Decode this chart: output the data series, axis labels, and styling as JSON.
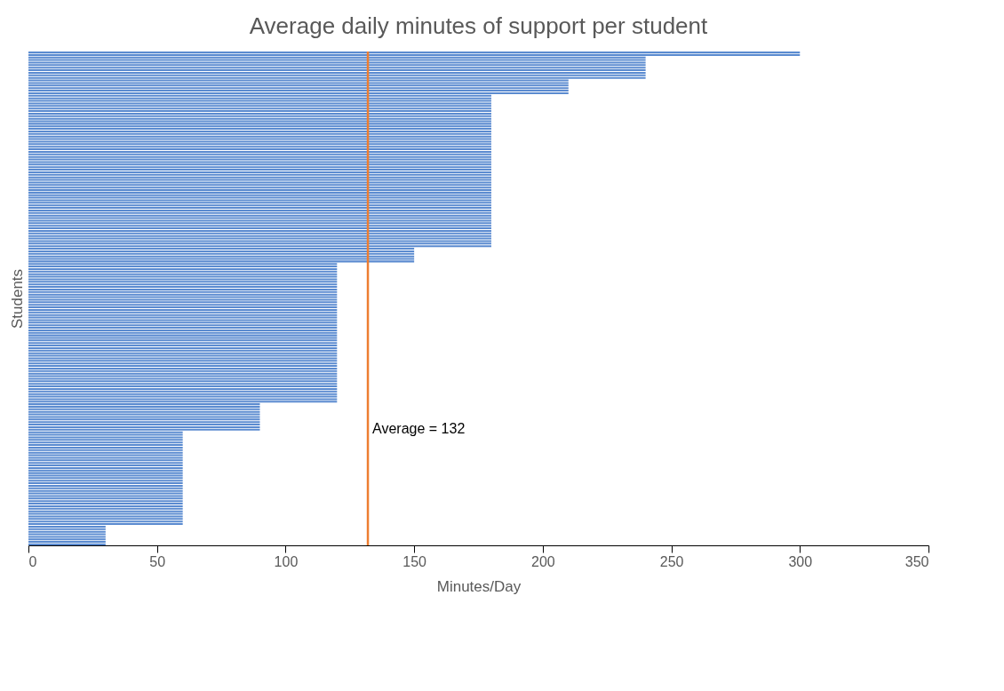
{
  "chart_data": {
    "type": "bar",
    "orientation": "horizontal",
    "title": "Average daily minutes of support per student",
    "xlabel": "Minutes/Day",
    "ylabel": "Students",
    "categories": [
      null,
      null,
      null,
      null,
      null,
      null,
      null,
      null,
      null,
      null,
      null,
      null,
      null,
      null,
      null,
      null,
      null,
      null,
      null,
      null,
      null,
      null,
      null,
      null,
      null,
      null,
      null,
      null,
      null,
      null,
      null,
      null,
      null,
      null,
      null,
      null,
      null,
      null,
      null,
      null,
      null,
      null,
      null,
      null,
      null,
      null,
      null,
      null,
      null,
      null,
      null,
      null,
      null,
      null,
      null,
      null,
      null,
      null,
      null,
      null,
      null,
      null,
      null,
      null,
      null,
      null,
      null,
      null,
      null,
      null,
      null,
      null,
      null,
      null,
      null,
      null,
      null,
      null,
      null,
      null,
      null,
      null,
      null,
      null,
      null,
      null,
      null,
      null,
      null,
      null,
      null,
      null,
      null,
      null,
      null,
      null,
      null,
      null,
      null,
      null,
      null,
      null,
      null,
      null,
      null,
      null,
      null,
      null,
      null,
      null,
      null,
      null,
      null,
      null,
      null,
      null,
      null,
      null,
      null,
      null,
      null,
      null,
      null,
      null,
      null,
      null,
      null,
      null,
      null,
      null,
      null,
      null,
      null,
      null,
      null,
      null,
      null,
      null,
      null,
      null,
      null,
      null,
      null,
      null,
      null,
      null,
      null,
      null,
      null,
      null,
      null,
      null,
      null,
      null,
      null,
      null,
      null,
      null,
      null,
      null,
      null,
      null,
      null,
      null,
      null,
      null,
      null,
      null,
      null,
      null,
      null,
      null,
      null,
      null,
      null,
      null,
      null,
      null,
      null,
      null,
      null,
      null,
      null,
      null,
      null,
      null,
      null,
      null,
      null,
      null,
      null,
      null,
      null,
      null
    ],
    "values": [
      300,
      300,
      240,
      240,
      240,
      240,
      240,
      240,
      240,
      240,
      240,
      210,
      210,
      210,
      210,
      210,
      210,
      180,
      180,
      180,
      180,
      180,
      180,
      180,
      180,
      180,
      180,
      180,
      180,
      180,
      180,
      180,
      180,
      180,
      180,
      180,
      180,
      180,
      180,
      180,
      180,
      180,
      180,
      180,
      180,
      180,
      180,
      180,
      180,
      180,
      180,
      180,
      180,
      180,
      180,
      180,
      180,
      180,
      180,
      180,
      180,
      180,
      180,
      180,
      180,
      180,
      180,
      180,
      180,
      180,
      180,
      180,
      180,
      180,
      180,
      180,
      180,
      150,
      150,
      150,
      150,
      150,
      150,
      120,
      120,
      120,
      120,
      120,
      120,
      120,
      120,
      120,
      120,
      120,
      120,
      120,
      120,
      120,
      120,
      120,
      120,
      120,
      120,
      120,
      120,
      120,
      120,
      120,
      120,
      120,
      120,
      120,
      120,
      120,
      120,
      120,
      120,
      120,
      120,
      120,
      120,
      120,
      120,
      120,
      120,
      120,
      120,
      120,
      120,
      120,
      120,
      120,
      120,
      120,
      120,
      120,
      120,
      120,
      90,
      90,
      90,
      90,
      90,
      90,
      90,
      90,
      90,
      90,
      90,
      60,
      60,
      60,
      60,
      60,
      60,
      60,
      60,
      60,
      60,
      60,
      60,
      60,
      60,
      60,
      60,
      60,
      60,
      60,
      60,
      60,
      60,
      60,
      60,
      60,
      60,
      60,
      60,
      60,
      60,
      60,
      60,
      60,
      60,
      60,
      60,
      60,
      30,
      30,
      30,
      30,
      30,
      30,
      30,
      30
    ],
    "color": "#5b8bd0",
    "xlim": [
      0,
      350
    ],
    "xticks": [
      0,
      50,
      100,
      150,
      200,
      250,
      300,
      350
    ],
    "tick_labels": "x",
    "grid": false,
    "legend": false,
    "ref_lines": [
      {
        "axis": "x",
        "value": 132,
        "label": "Average = 132",
        "color": "#ed7d31"
      }
    ]
  }
}
